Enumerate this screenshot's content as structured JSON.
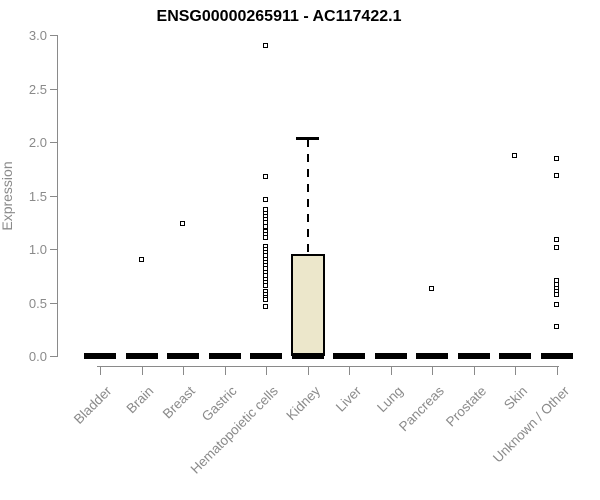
{
  "chart_data": {
    "type": "boxplot",
    "title": "ENSG00000265911 - AC117422.1",
    "ylabel": "Expression",
    "xlabel": "",
    "ylim": [
      0.0,
      3.0
    ],
    "yticks": [
      0.0,
      0.5,
      1.0,
      1.5,
      2.0,
      2.5,
      3.0
    ],
    "grid": false,
    "legend": false,
    "categories": [
      "Bladder",
      "Brain",
      "Breast",
      "Gastric",
      "Hematopoietic cells",
      "Kidney",
      "Liver",
      "Lung",
      "Pancreas",
      "Prostate",
      "Skin",
      "Unknown / Other"
    ],
    "boxes": [
      {
        "category": "Bladder",
        "q1": 0,
        "median": 0,
        "q3": 0,
        "whisker_low": 0,
        "whisker_high": 0,
        "outliers": []
      },
      {
        "category": "Brain",
        "q1": 0,
        "median": 0,
        "q3": 0,
        "whisker_low": 0,
        "whisker_high": 0,
        "outliers": [
          0.9
        ]
      },
      {
        "category": "Breast",
        "q1": 0,
        "median": 0,
        "q3": 0,
        "whisker_low": 0,
        "whisker_high": 0,
        "outliers": [
          1.23
        ]
      },
      {
        "category": "Gastric",
        "q1": 0,
        "median": 0,
        "q3": 0,
        "whisker_low": 0,
        "whisker_high": 0,
        "outliers": []
      },
      {
        "category": "Hematopoietic cells",
        "q1": 0,
        "median": 0,
        "q3": 0,
        "whisker_low": 0,
        "whisker_high": 0,
        "outliers": [
          2.9,
          1.67,
          1.46,
          1.36,
          1.33,
          1.3,
          1.27,
          1.24,
          1.21,
          1.16,
          1.13,
          1.1,
          1.02,
          0.99,
          0.96,
          0.93,
          0.9,
          0.87,
          0.84,
          0.81,
          0.78,
          0.75,
          0.71,
          0.68,
          0.65,
          0.6,
          0.57,
          0.54,
          0.52,
          0.46
        ]
      },
      {
        "category": "Kidney",
        "q1": 0,
        "median": 0,
        "q3": 0.95,
        "whisker_low": 0,
        "whisker_high": 2.04,
        "outliers": []
      },
      {
        "category": "Liver",
        "q1": 0,
        "median": 0,
        "q3": 0,
        "whisker_low": 0,
        "whisker_high": 0,
        "outliers": []
      },
      {
        "category": "Lung",
        "q1": 0,
        "median": 0,
        "q3": 0,
        "whisker_low": 0,
        "whisker_high": 0,
        "outliers": []
      },
      {
        "category": "Pancreas",
        "q1": 0,
        "median": 0,
        "q3": 0,
        "whisker_low": 0,
        "whisker_high": 0,
        "outliers": [
          0.63
        ]
      },
      {
        "category": "Prostate",
        "q1": 0,
        "median": 0,
        "q3": 0,
        "whisker_low": 0,
        "whisker_high": 0,
        "outliers": []
      },
      {
        "category": "Skin",
        "q1": 0,
        "median": 0,
        "q3": 0,
        "whisker_low": 0,
        "whisker_high": 0,
        "outliers": [
          1.87
        ]
      },
      {
        "category": "Unknown / Other",
        "q1": 0,
        "median": 0,
        "q3": 0,
        "whisker_low": 0,
        "whisker_high": 0,
        "outliers": [
          1.84,
          1.68,
          1.08,
          1.01,
          0.7,
          0.66,
          0.63,
          0.6,
          0.57,
          0.48,
          0.27
        ]
      }
    ],
    "colors": {
      "box_fill": "#ECE7CB",
      "box_border": "#000000",
      "median": "#000000",
      "outlier": "#000000",
      "axis": "#8A8A8A",
      "tick_label": "#8A8A8A",
      "title": "#000000",
      "background": "#FFFFFF"
    }
  }
}
